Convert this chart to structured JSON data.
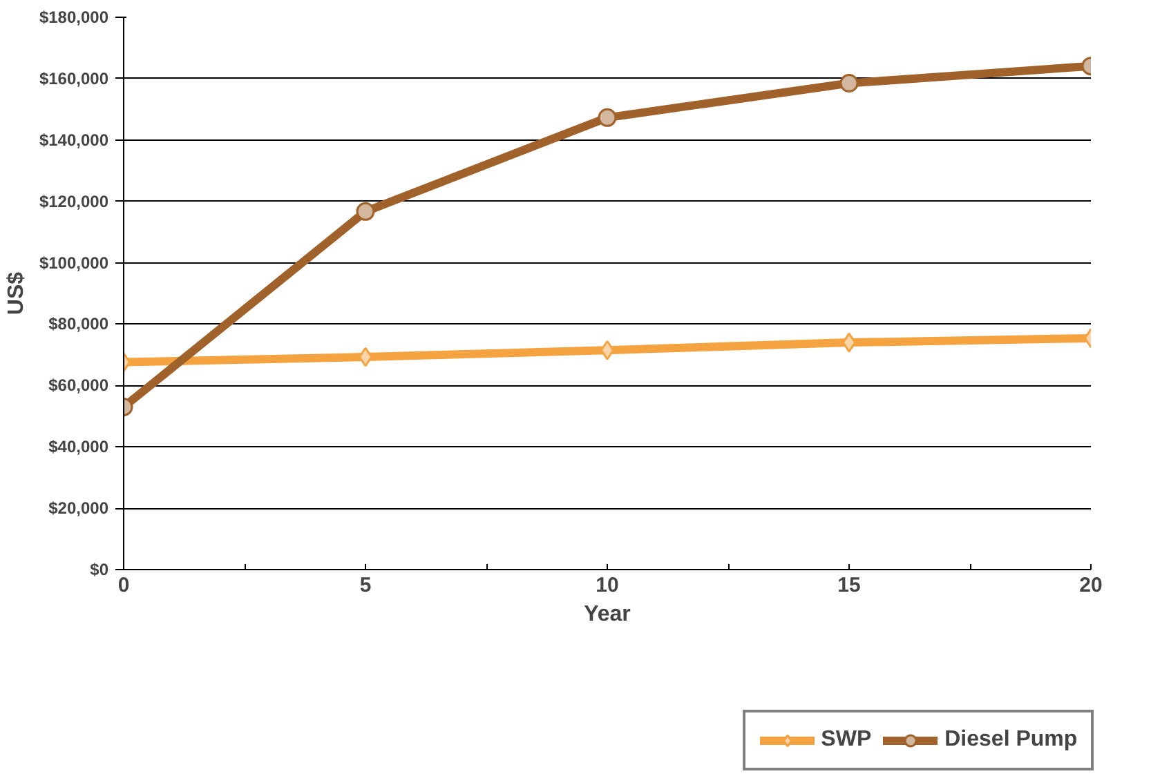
{
  "chart_data": {
    "type": "line",
    "xlabel": "Year",
    "ylabel": "US$",
    "x": [
      0,
      5,
      10,
      15,
      20
    ],
    "series": [
      {
        "name": "SWP",
        "color": "#f4a340",
        "marker": "diamond",
        "values": [
          67600,
          69300,
          71500,
          74000,
          75400
        ]
      },
      {
        "name": "Diesel Pump",
        "color": "#a0612a",
        "marker": "circle",
        "values": [
          53000,
          116700,
          147300,
          158500,
          164100
        ]
      }
    ],
    "xlim": [
      0,
      20
    ],
    "xticks": [
      0,
      {
        "value": 2.5,
        "label": null
      },
      5,
      {
        "value": 7.5,
        "label": null
      },
      10,
      {
        "value": 12.5,
        "label": null
      },
      15,
      {
        "value": 17.5,
        "label": null
      },
      20
    ],
    "ylim": [
      0,
      180000
    ],
    "yticks": [
      {
        "value": 0,
        "label": "$0"
      },
      {
        "value": 20000,
        "label": "$20,000"
      },
      {
        "value": 40000,
        "label": "$40,000"
      },
      {
        "value": 60000,
        "label": "$60,000"
      },
      {
        "value": 80000,
        "label": "$80,000"
      },
      {
        "value": 100000,
        "label": "$100,000"
      },
      {
        "value": 120000,
        "label": "$120,000"
      },
      {
        "value": 140000,
        "label": "$140,000"
      },
      {
        "value": 160000,
        "label": "$160,000"
      },
      {
        "value": 180000,
        "label": "$180,000"
      }
    ],
    "grid": "y",
    "legend": "bottom",
    "line_style": "solid"
  }
}
